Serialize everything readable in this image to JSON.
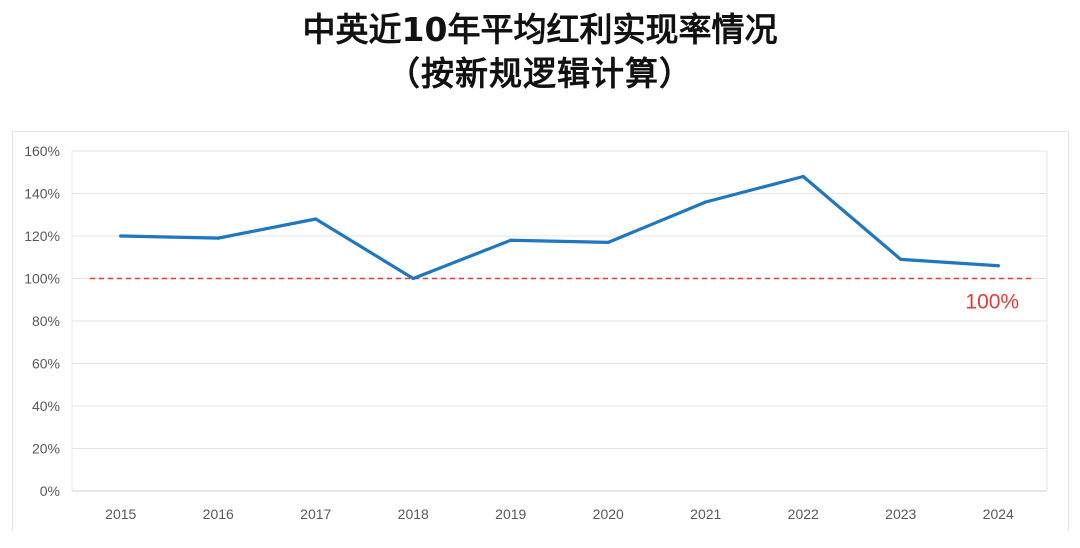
{
  "title": {
    "line1": "中英近10年平均红利实现率情况",
    "line2": "（按新规逻辑计算）"
  },
  "chart_data": {
    "type": "line",
    "categories": [
      "2015",
      "2016",
      "2017",
      "2018",
      "2019",
      "2020",
      "2021",
      "2022",
      "2023",
      "2024"
    ],
    "series": [
      {
        "values": [
          120,
          119,
          128,
          100,
          118,
          117,
          136,
          148,
          109,
          106
        ],
        "color": "#1f77c0"
      }
    ],
    "y_ticks": [
      "0%",
      "20%",
      "40%",
      "60%",
      "80%",
      "100%",
      "120%",
      "140%",
      "160%"
    ],
    "ylim": [
      0,
      160
    ],
    "y_unit": "%",
    "grid": true,
    "reference_line": {
      "value": 100,
      "label": "100%",
      "color": "#e03c3c",
      "style": "dashed"
    }
  }
}
